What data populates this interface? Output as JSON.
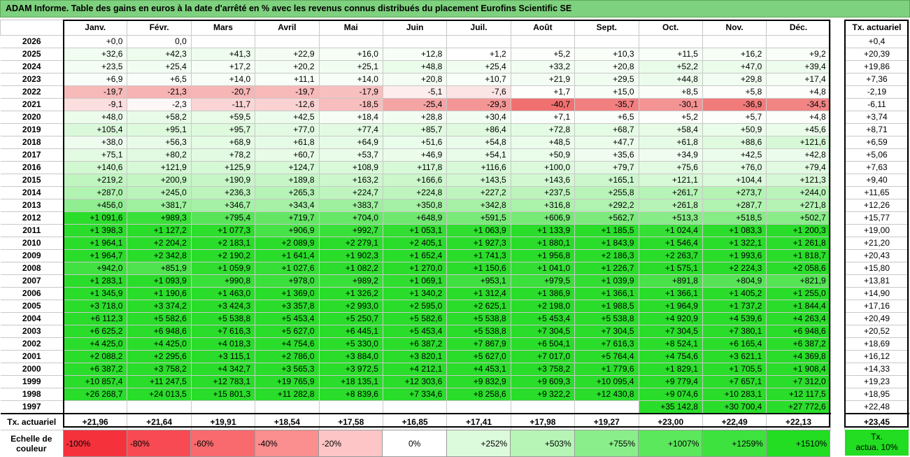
{
  "title": "ADAM Informe. Table des gains en euros à la date d'arrêté en % avec les revenus connus distribués du placement Eurofins Scientific SE",
  "chart_data": {
    "type": "heatmap",
    "title": "ADAM Informe. Table des gains en euros à la date d'arrêté en % avec les revenus connus distribués du placement Eurofins Scientific SE",
    "columns": [
      "Janv.",
      "Févr.",
      "Mars",
      "Avril",
      "Mai",
      "Juin",
      "Juil.",
      "Août",
      "Sept.",
      "Oct.",
      "Nov.",
      "Déc."
    ],
    "side_header": "Tx. actuariel",
    "rows": [
      {
        "year": "2026",
        "values": [
          "+0,0",
          "0,0",
          "",
          "",
          "",
          "",
          "",
          "",
          "",
          "",
          "",
          ""
        ],
        "tx": "+0,4"
      },
      {
        "year": "2025",
        "values": [
          "+32,6",
          "+42,3",
          "+41,3",
          "+22,9",
          "+16,0",
          "+12,8",
          "+1,2",
          "+5,2",
          "+10,3",
          "+11,5",
          "+16,2",
          "+9,2"
        ],
        "tx": "+20,39"
      },
      {
        "year": "2024",
        "values": [
          "+23,5",
          "+25,4",
          "+17,2",
          "+20,2",
          "+25,1",
          "+48,8",
          "+25,4",
          "+33,2",
          "+20,8",
          "+52,2",
          "+47,0",
          "+39,4"
        ],
        "tx": "+19,86"
      },
      {
        "year": "2023",
        "values": [
          "+6,9",
          "+6,5",
          "+14,0",
          "+11,1",
          "+14,0",
          "+20,8",
          "+10,7",
          "+21,9",
          "+29,5",
          "+44,8",
          "+29,8",
          "+17,4"
        ],
        "tx": "+7,36"
      },
      {
        "year": "2022",
        "values": [
          "-19,7",
          "-21,3",
          "-20,7",
          "-19,7",
          "-17,9",
          "-5,1",
          "-7,6",
          "+1,7",
          "+15,0",
          "+8,5",
          "+5,8",
          "+4,8"
        ],
        "tx": "-2,19"
      },
      {
        "year": "2021",
        "values": [
          "-9,1",
          "-2,3",
          "-11,7",
          "-12,6",
          "-18,5",
          "-25,4",
          "-29,3",
          "-40,7",
          "-35,7",
          "-30,1",
          "-36,9",
          "-34,5"
        ],
        "tx": "-6,11"
      },
      {
        "year": "2020",
        "values": [
          "+48,0",
          "+58,2",
          "+59,5",
          "+42,5",
          "+18,4",
          "+28,8",
          "+30,4",
          "+7,1",
          "+6,5",
          "+5,2",
          "+5,7",
          "+4,8"
        ],
        "tx": "+3,74"
      },
      {
        "year": "2019",
        "values": [
          "+105,4",
          "+95,1",
          "+95,7",
          "+77,0",
          "+77,4",
          "+85,7",
          "+86,4",
          "+72,8",
          "+68,7",
          "+58,4",
          "+50,9",
          "+45,6"
        ],
        "tx": "+8,71"
      },
      {
        "year": "2018",
        "values": [
          "+38,0",
          "+56,3",
          "+68,9",
          "+61,8",
          "+64,9",
          "+51,6",
          "+54,8",
          "+48,5",
          "+47,7",
          "+61,8",
          "+88,6",
          "+121,6"
        ],
        "tx": "+6,59"
      },
      {
        "year": "2017",
        "values": [
          "+75,1",
          "+80,2",
          "+78,2",
          "+60,7",
          "+53,7",
          "+46,9",
          "+54,1",
          "+50,9",
          "+35,6",
          "+34,9",
          "+42,5",
          "+42,8"
        ],
        "tx": "+5,06"
      },
      {
        "year": "2016",
        "values": [
          "+140,6",
          "+121,9",
          "+125,9",
          "+124,7",
          "+108,9",
          "+117,8",
          "+116,6",
          "+100,0",
          "+79,7",
          "+75,6",
          "+76,0",
          "+79,4"
        ],
        "tx": "+7,63"
      },
      {
        "year": "2015",
        "values": [
          "+219,2",
          "+200,9",
          "+190,9",
          "+189,8",
          "+163,2",
          "+166,6",
          "+143,5",
          "+143,6",
          "+165,1",
          "+121,1",
          "+104,4",
          "+121,3"
        ],
        "tx": "+9,40"
      },
      {
        "year": "2014",
        "values": [
          "+287,0",
          "+245,0",
          "+236,3",
          "+265,3",
          "+224,7",
          "+224,8",
          "+227,2",
          "+237,5",
          "+255,8",
          "+261,7",
          "+273,7",
          "+244,0"
        ],
        "tx": "+11,65"
      },
      {
        "year": "2013",
        "values": [
          "+456,0",
          "+381,7",
          "+346,7",
          "+343,4",
          "+383,7",
          "+350,8",
          "+342,8",
          "+316,8",
          "+292,2",
          "+261,8",
          "+287,7",
          "+271,8"
        ],
        "tx": "+12,26"
      },
      {
        "year": "2012",
        "values": [
          "+1 091,6",
          "+989,3",
          "+795,4",
          "+719,7",
          "+704,0",
          "+648,9",
          "+591,5",
          "+606,9",
          "+562,7",
          "+513,3",
          "+518,5",
          "+502,7"
        ],
        "tx": "+15,77"
      },
      {
        "year": "2011",
        "values": [
          "+1 398,3",
          "+1 127,2",
          "+1 077,3",
          "+906,9",
          "+992,7",
          "+1 053,1",
          "+1 063,9",
          "+1 133,9",
          "+1 185,5",
          "+1 024,4",
          "+1 083,3",
          "+1 200,3"
        ],
        "tx": "+19,00"
      },
      {
        "year": "2010",
        "values": [
          "+1 964,1",
          "+2 204,2",
          "+2 183,1",
          "+2 089,9",
          "+2 279,1",
          "+2 405,1",
          "+1 927,3",
          "+1 880,1",
          "+1 843,9",
          "+1 546,4",
          "+1 322,1",
          "+1 261,8"
        ],
        "tx": "+21,20"
      },
      {
        "year": "2009",
        "values": [
          "+1 964,7",
          "+2 342,8",
          "+2 190,2",
          "+1 641,4",
          "+1 902,3",
          "+1 652,4",
          "+1 741,3",
          "+1 956,8",
          "+2 186,3",
          "+2 263,7",
          "+1 993,6",
          "+1 818,7"
        ],
        "tx": "+20,43"
      },
      {
        "year": "2008",
        "values": [
          "+942,0",
          "+851,9",
          "+1 059,9",
          "+1 027,6",
          "+1 082,2",
          "+1 270,0",
          "+1 150,6",
          "+1 041,0",
          "+1 226,7",
          "+1 575,1",
          "+2 224,3",
          "+2 058,6"
        ],
        "tx": "+15,80"
      },
      {
        "year": "2007",
        "values": [
          "+1 283,1",
          "+1 093,9",
          "+990,8",
          "+978,0",
          "+989,2",
          "+1 069,1",
          "+953,1",
          "+979,5",
          "+1 039,9",
          "+891,8",
          "+804,9",
          "+821,9"
        ],
        "tx": "+13,81"
      },
      {
        "year": "2006",
        "values": [
          "+1 345,9",
          "+1 190,6",
          "+1 463,0",
          "+1 369,0",
          "+1 326,2",
          "+1 340,2",
          "+1 312,4",
          "+1 386,9",
          "+1 366,1",
          "+1 366,1",
          "+1 405,2",
          "+1 255,0"
        ],
        "tx": "+14,90"
      },
      {
        "year": "2005",
        "values": [
          "+3 718,0",
          "+3 374,2",
          "+3 424,3",
          "+3 357,8",
          "+2 993,0",
          "+2 595,0",
          "+2 625,1",
          "+2 198,0",
          "+1 988,5",
          "+1 964,9",
          "+1 737,2",
          "+1 844,4"
        ],
        "tx": "+17,16"
      },
      {
        "year": "2004",
        "values": [
          "+6 112,3",
          "+5 582,6",
          "+5 538,8",
          "+5 453,4",
          "+5 250,7",
          "+5 582,6",
          "+5 538,8",
          "+5 453,4",
          "+5 538,8",
          "+4 920,9",
          "+4 539,6",
          "+4 263,4"
        ],
        "tx": "+20,49"
      },
      {
        "year": "2003",
        "values": [
          "+6 625,2",
          "+6 948,6",
          "+7 616,3",
          "+5 627,0",
          "+6 445,1",
          "+5 453,4",
          "+5 538,8",
          "+7 304,5",
          "+7 304,5",
          "+7 304,5",
          "+7 380,1",
          "+6 948,6"
        ],
        "tx": "+20,52"
      },
      {
        "year": "2002",
        "values": [
          "+4 425,0",
          "+4 425,0",
          "+4 018,3",
          "+4 754,6",
          "+5 330,0",
          "+6 387,2",
          "+7 867,9",
          "+6 504,1",
          "+7 616,3",
          "+8 524,1",
          "+6 165,4",
          "+6 387,2"
        ],
        "tx": "+18,69"
      },
      {
        "year": "2001",
        "values": [
          "+2 088,2",
          "+2 295,6",
          "+3 115,1",
          "+2 786,0",
          "+3 884,0",
          "+3 820,1",
          "+5 627,0",
          "+7 017,0",
          "+5 764,4",
          "+4 754,6",
          "+3 621,1",
          "+4 369,8"
        ],
        "tx": "+16,12"
      },
      {
        "year": "2000",
        "values": [
          "+6 387,2",
          "+3 758,2",
          "+4 342,7",
          "+3 565,3",
          "+3 972,5",
          "+4 212,1",
          "+4 453,1",
          "+3 758,2",
          "+1 779,6",
          "+1 829,1",
          "+1 705,5",
          "+1 908,4"
        ],
        "tx": "+14,33"
      },
      {
        "year": "1999",
        "values": [
          "+10 857,4",
          "+11 247,5",
          "+12 783,1",
          "+19 765,9",
          "+18 135,1",
          "+12 303,6",
          "+9 832,9",
          "+9 609,3",
          "+10 095,4",
          "+9 779,4",
          "+7 657,1",
          "+7 312,0"
        ],
        "tx": "+19,23"
      },
      {
        "year": "1998",
        "values": [
          "+26 268,7",
          "+24 013,5",
          "+15 801,3",
          "+11 282,8",
          "+8 839,6",
          "+7 334,6",
          "+8 258,6",
          "+9 322,2",
          "+12 430,8",
          "+9 074,6",
          "+10 283,1",
          "+12 117,5"
        ],
        "tx": "+18,95"
      },
      {
        "year": "1997",
        "values": [
          "",
          "",
          "",
          "",
          "",
          "",
          "",
          "",
          "",
          "+35 142,8",
          "+30 700,4",
          "+27 772,6"
        ],
        "tx": "+22,48"
      }
    ],
    "footer": {
      "label": "Tx. actuariel",
      "values": [
        "+21,96",
        "+21,64",
        "+19,91",
        "+18,54",
        "+17,58",
        "+16,85",
        "+17,41",
        "+17,98",
        "+19,27",
        "+23,00",
        "+22,49",
        "+22,13"
      ],
      "tx": "+23,45"
    },
    "scale": {
      "label_line1": "Echelle de",
      "label_line2": "couleur",
      "steps": [
        {
          "text": "-100%",
          "color": "#f5323c",
          "kind": "neg"
        },
        {
          "text": "-80%",
          "color": "#f84a52",
          "kind": "neg"
        },
        {
          "text": "-60%",
          "color": "#f96a6e",
          "kind": "neg"
        },
        {
          "text": "-40%",
          "color": "#fb8e8f",
          "kind": "neg"
        },
        {
          "text": "-20%",
          "color": "#fdc5c5",
          "kind": "neg"
        },
        {
          "text": "0%",
          "color": "#ffffff",
          "kind": "zero"
        },
        {
          "text": "+252%",
          "color": "#dcfadc",
          "kind": "pos"
        },
        {
          "text": "+503%",
          "color": "#b6f5b6",
          "kind": "pos"
        },
        {
          "text": "+755%",
          "color": "#8aef8a",
          "kind": "pos"
        },
        {
          "text": "+1007%",
          "color": "#5ce85c",
          "kind": "pos"
        },
        {
          "text": "+1259%",
          "color": "#3ee23e",
          "kind": "pos"
        },
        {
          "text": "+1510%",
          "color": "#22dd22",
          "kind": "pos"
        }
      ],
      "tx_line1": "Tx.",
      "tx_line2": "actua. 10%"
    }
  }
}
